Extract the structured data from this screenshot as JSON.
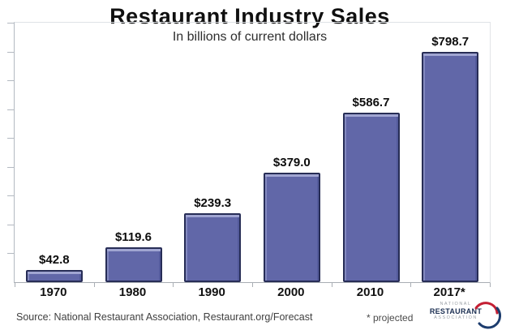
{
  "chart_data": {
    "type": "bar",
    "title": "Restaurant Industry Sales",
    "subtitle": "In billions of current dollars",
    "categories": [
      "1970",
      "1980",
      "1990",
      "2000",
      "2010",
      "2017*"
    ],
    "values": [
      42.8,
      119.6,
      239.3,
      379.0,
      586.7,
      798.7
    ],
    "bar_labels": [
      "$42.8",
      "$119.6",
      "$239.3",
      "$379.0",
      "$586.7",
      "$798.7"
    ],
    "xlabel": "",
    "ylabel": "",
    "ylim": [
      0,
      900
    ],
    "ytick_interval": 100,
    "grid": false,
    "legend": "none",
    "colors": {
      "bar_fill": "#6167a8",
      "bar_highlight": "#a0a5d2",
      "bar_border": "#272d56",
      "axis": "#b3b9c1",
      "logo_red": "#c41f33",
      "logo_blue": "#1d3d6e"
    }
  },
  "footer": {
    "source": "Source: National Restaurant Association, Restaurant.org/Forecast",
    "note": "* projected",
    "logo": {
      "line1": "NATIONAL",
      "line2": "RESTAURANT",
      "line3": "ASSOCIATION"
    }
  }
}
